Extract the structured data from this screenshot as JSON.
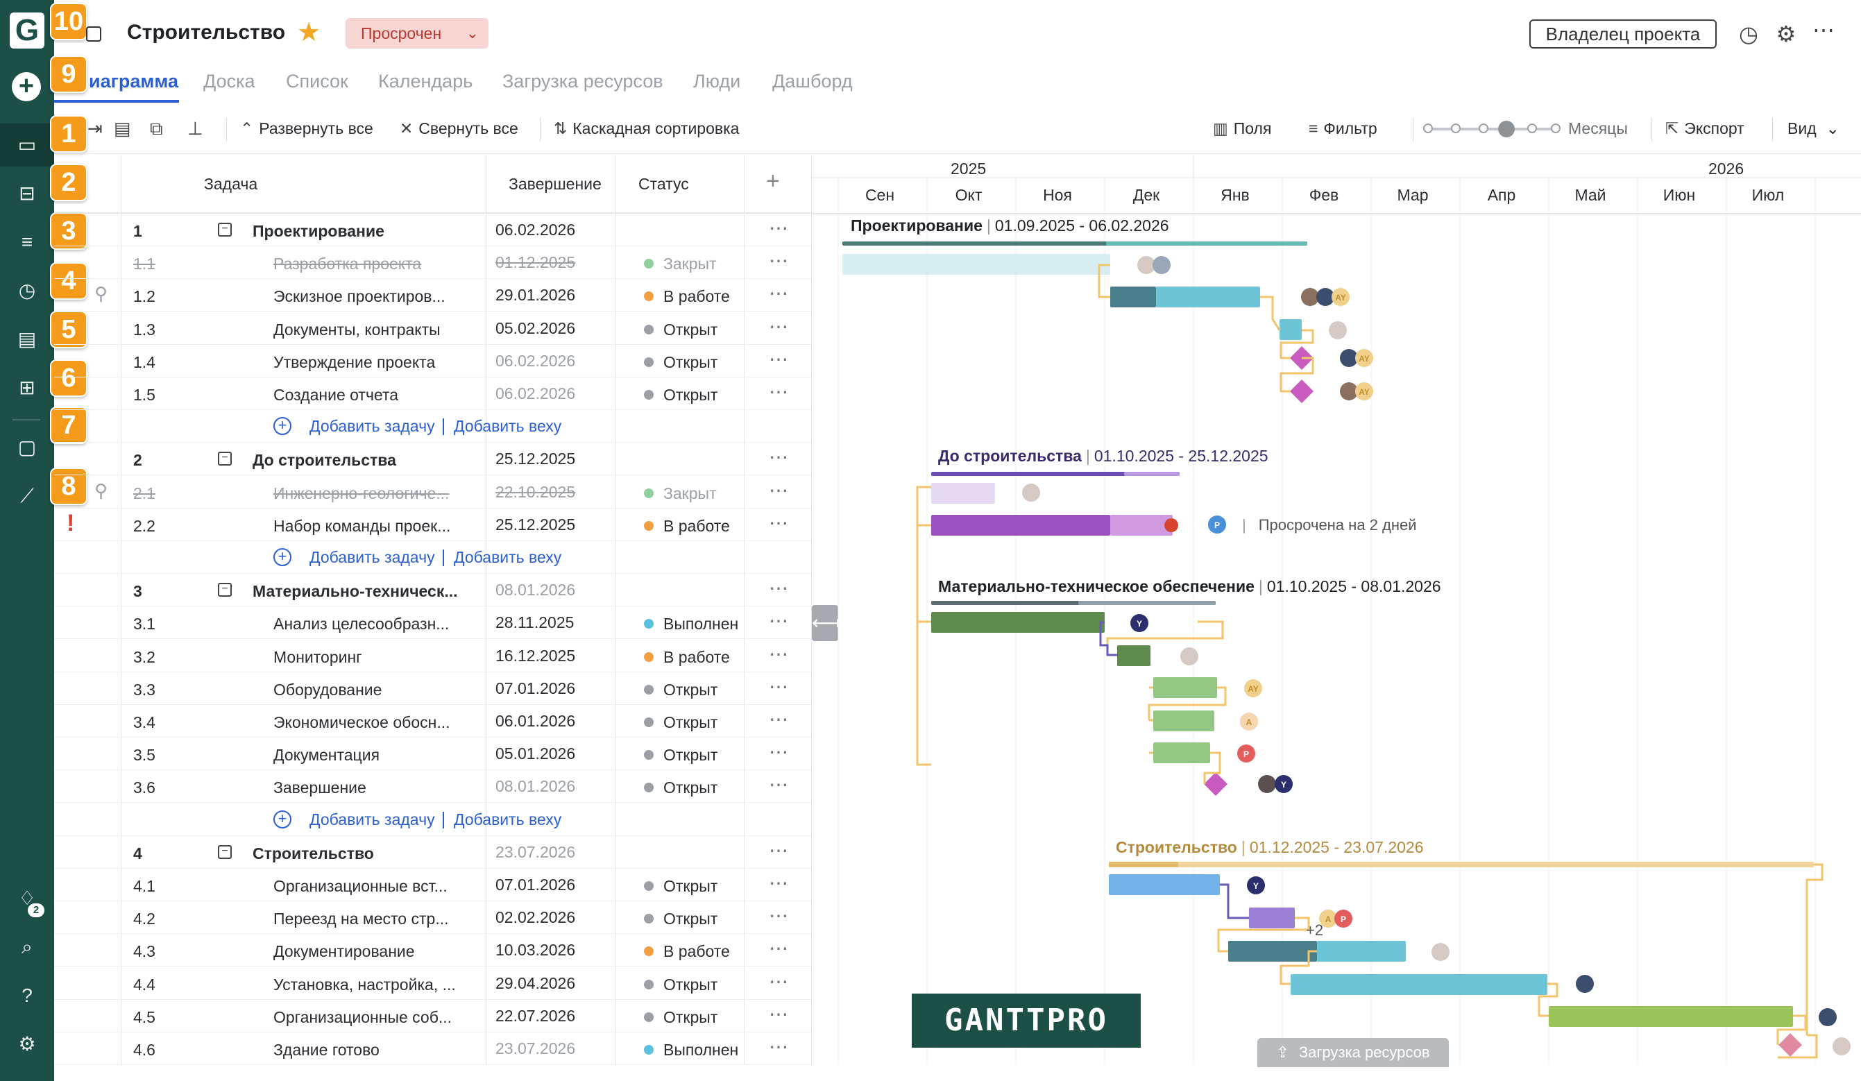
{
  "app": {
    "logo": "G",
    "project_title": "Строительство",
    "status": "Просрочен",
    "owner_button": "Владелец проекта",
    "colors": {
      "brand": "#1c4f46",
      "link": "#2b5fd1",
      "marker": "#f59b1c",
      "status_bg": "#f7d5d2"
    }
  },
  "markers": [
    "10",
    "9",
    "1",
    "2",
    "3",
    "4",
    "5",
    "6",
    "7",
    "8"
  ],
  "sidebar": {
    "notification_count": "2",
    "icons": [
      "folder-icon",
      "briefcase-icon",
      "list-icon",
      "clock-icon",
      "report-icon",
      "apps-icon",
      "chat-icon",
      "clip-icon",
      "bell-icon",
      "search-icon",
      "help-icon",
      "settings-icon"
    ]
  },
  "tabs": [
    "Диаграмма",
    "Доска",
    "Список",
    "Календарь",
    "Загрузка ресурсов",
    "Люди",
    "Дашборд"
  ],
  "tabs_visible": [
    "иаграмма",
    "Доска",
    "Список",
    "Календарь",
    "Загрузка ресурсов",
    "Люди",
    "Дашборд"
  ],
  "toolbar": {
    "expand_all": "Развернуть все",
    "collapse_all": "Свернуть все",
    "cascade_sort": "Каскадная сортировка",
    "fields": "Поля",
    "filter": "Фильтр",
    "zoom_level": "Месяцы",
    "export": "Экспорт",
    "view": "Вид"
  },
  "grid": {
    "columns": {
      "task": "Задача",
      "end": "Завершение",
      "status": "Статус",
      "add": "+"
    },
    "add_task": "Добавить задачу",
    "add_milestone": "Добавить веху",
    "rows": [
      {
        "wbs": "1",
        "name": "Проектирование",
        "end": "06.02.2026",
        "status": "",
        "type": "summary"
      },
      {
        "wbs": "1.1",
        "name": "Разработка проекта",
        "end": "01.12.2025",
        "status": "Закрыт",
        "dot": "#8fd19e",
        "type": "done"
      },
      {
        "wbs": "1.2",
        "name": "Эскизное проектиров...",
        "end": "29.01.2026",
        "status": "В работе",
        "dot": "#f0a040",
        "type": "task",
        "clip": true
      },
      {
        "wbs": "1.3",
        "name": "Документы, контракты",
        "end": "05.02.2026",
        "status": "Открыт",
        "dot": "#9aa0a6",
        "type": "task"
      },
      {
        "wbs": "1.4",
        "name": "Утверждение проекта",
        "end": "06.02.2026",
        "status": "Открыт",
        "dot": "#9aa0a6",
        "type": "milestone"
      },
      {
        "wbs": "1.5",
        "name": "Создание отчета",
        "end": "06.02.2026",
        "status": "Открыт",
        "dot": "#9aa0a6",
        "type": "milestone"
      },
      {
        "type": "add"
      },
      {
        "wbs": "2",
        "name": "До строительства",
        "end": "25.12.2025",
        "status": "",
        "type": "summary"
      },
      {
        "wbs": "2.1",
        "name": "Инженерно-геологиче...",
        "end": "22.10.2025",
        "status": "Закрыт",
        "dot": "#8fd19e",
        "type": "done",
        "clip": true
      },
      {
        "wbs": "2.2",
        "name": "Набор команды проек...",
        "end": "25.12.2025",
        "status": "В работе",
        "dot": "#f0a040",
        "type": "task",
        "warn": true
      },
      {
        "type": "add"
      },
      {
        "wbs": "3",
        "name": "Материально-техническ...",
        "end": "08.01.2026",
        "status": "",
        "type": "summary",
        "grey": true
      },
      {
        "wbs": "3.1",
        "name": "Анализ целесообразн...",
        "end": "28.11.2025",
        "status": "Выполнен",
        "dot": "#5bc0de",
        "type": "task"
      },
      {
        "wbs": "3.2",
        "name": "Мониторинг",
        "end": "16.12.2025",
        "status": "В работе",
        "dot": "#f0a040",
        "type": "task"
      },
      {
        "wbs": "3.3",
        "name": "Оборудование",
        "end": "07.01.2026",
        "status": "Открыт",
        "dot": "#9aa0a6",
        "type": "task"
      },
      {
        "wbs": "3.4",
        "name": "Экономическое обосн...",
        "end": "06.01.2026",
        "status": "Открыт",
        "dot": "#9aa0a6",
        "type": "task"
      },
      {
        "wbs": "3.5",
        "name": "Документация",
        "end": "05.01.2026",
        "status": "Открыт",
        "dot": "#9aa0a6",
        "type": "task"
      },
      {
        "wbs": "3.6",
        "name": "Завершение",
        "end": "08.01.2026",
        "status": "Открыт",
        "dot": "#9aa0a6",
        "type": "milestone"
      },
      {
        "type": "add"
      },
      {
        "wbs": "4",
        "name": "Строительство",
        "end": "23.07.2026",
        "status": "",
        "type": "summary",
        "grey": true
      },
      {
        "wbs": "4.1",
        "name": "Организационные вст...",
        "end": "07.01.2026",
        "status": "Открыт",
        "dot": "#9aa0a6",
        "type": "task"
      },
      {
        "wbs": "4.2",
        "name": "Переезд на место стр...",
        "end": "02.02.2026",
        "status": "Открыт",
        "dot": "#9aa0a6",
        "type": "task"
      },
      {
        "wbs": "4.3",
        "name": "Документирование",
        "end": "10.03.2026",
        "status": "В работе",
        "dot": "#f0a040",
        "type": "task"
      },
      {
        "wbs": "4.4",
        "name": "Установка, настройка, ...",
        "end": "29.04.2026",
        "status": "Открыт",
        "dot": "#9aa0a6",
        "type": "task"
      },
      {
        "wbs": "4.5",
        "name": "Организационные соб...",
        "end": "22.07.2026",
        "status": "Открыт",
        "dot": "#9aa0a6",
        "type": "task"
      },
      {
        "wbs": "4.6",
        "name": "Здание готово",
        "end": "23.07.2026",
        "status": "Выполнен",
        "dot": "#5bc0de",
        "type": "milestone"
      }
    ]
  },
  "chart": {
    "years": [
      "2025",
      "2026"
    ],
    "months": [
      "Сен",
      "Окт",
      "Ноя",
      "Дек",
      "Янв",
      "Фев",
      "Мар",
      "Апр",
      "Май",
      "Июн",
      "Июл"
    ],
    "summary_labels": [
      {
        "name": "Проектирование",
        "range": "01.09.2025 - 06.02.2026",
        "color": "#2a2d31"
      },
      {
        "name": "До строительства",
        "range": "01.10.2025 - 25.12.2025",
        "color": "#3b2a6e"
      },
      {
        "name": "Материально-техническое обеспечение",
        "range": "01.10.2025 - 08.01.2026",
        "color": "#2a2d31"
      },
      {
        "name": "Строительство",
        "range": "01.12.2025 - 23.07.2026",
        "color": "#b58a3c"
      }
    ],
    "overdue_text": "Просрочена на 2 дней",
    "extra_assignees": "+2",
    "avatar_initials": [
      "AY",
      "A",
      "P",
      "Y"
    ],
    "brand_watermark": "GANTTPRO",
    "resource_load_button": "Загрузка ресурсов"
  }
}
